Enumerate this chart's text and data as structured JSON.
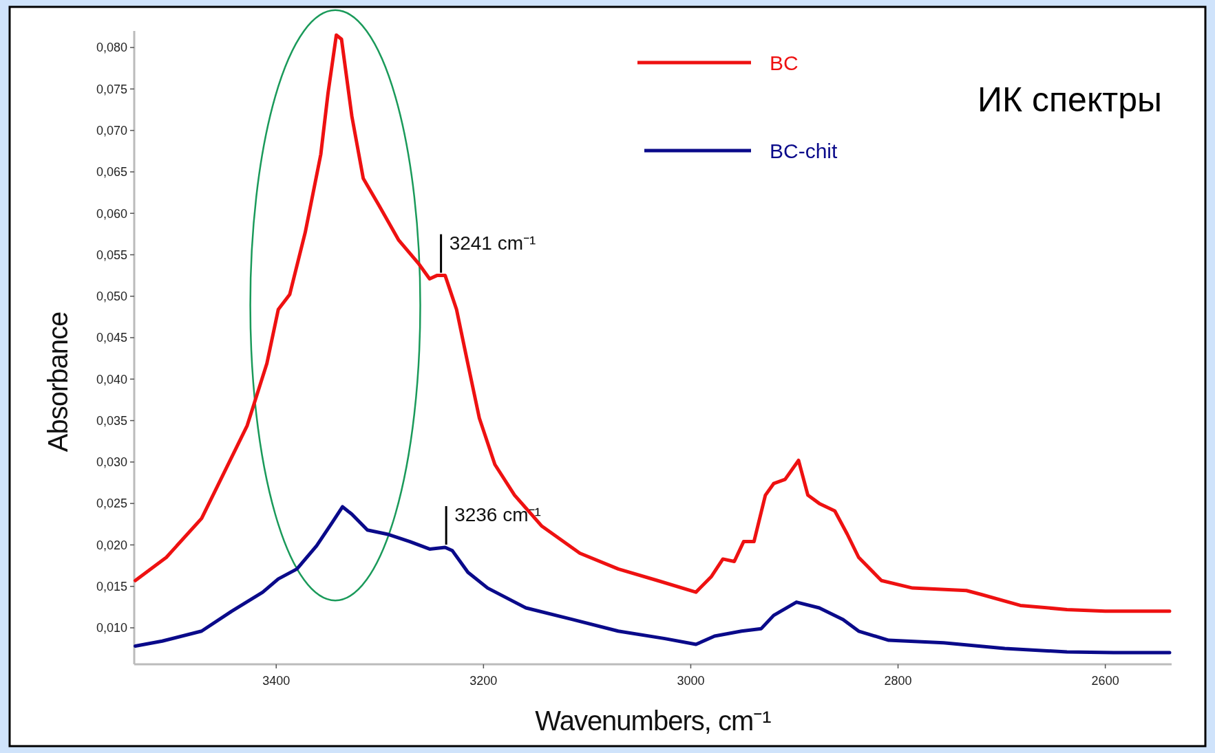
{
  "chart_data": {
    "type": "line",
    "title": "ИК спектры",
    "xlabel": "Wavenumbers, cm⁻¹",
    "ylabel": "Absorbance",
    "xlim": [
      3537,
      2536
    ],
    "ylim": [
      0.0056,
      0.082
    ],
    "xticks": [
      3400,
      3200,
      3000,
      2800,
      2600
    ],
    "yticks": [
      {
        "value": 0.01,
        "label": "0,010"
      },
      {
        "value": 0.015,
        "label": "0,015"
      },
      {
        "value": 0.02,
        "label": "0,020"
      },
      {
        "value": 0.025,
        "label": "0,025"
      },
      {
        "value": 0.03,
        "label": "0,030"
      },
      {
        "value": 0.035,
        "label": "0,035"
      },
      {
        "value": 0.04,
        "label": "0,040"
      },
      {
        "value": 0.045,
        "label": "0,045"
      },
      {
        "value": 0.05,
        "label": "0,050"
      },
      {
        "value": 0.055,
        "label": "0,055"
      },
      {
        "value": 0.06,
        "label": "0,060"
      },
      {
        "value": 0.065,
        "label": "0,065"
      },
      {
        "value": 0.07,
        "label": "0,070"
      },
      {
        "value": 0.075,
        "label": "0,075"
      },
      {
        "value": 0.08,
        "label": "0,080"
      }
    ],
    "grid": false,
    "legend": "top",
    "marker": "none",
    "line_style": "solid",
    "annotations": [
      {
        "text": "3241 cm⁻¹",
        "x": 3241,
        "y": 0.0525
      },
      {
        "text": "3236 cm⁻¹",
        "x": 3236,
        "y": 0.0197
      }
    ],
    "series": [
      {
        "name": "BC",
        "color": "#ee1111",
        "x": [
          3536,
          3506,
          3472,
          3450,
          3428,
          3409,
          3398,
          3387,
          3372,
          3357,
          3350,
          3342,
          3337,
          3327,
          3316,
          3301,
          3282,
          3263,
          3252,
          3245,
          3237,
          3226,
          3215,
          3204,
          3189,
          3170,
          3144,
          3107,
          3070,
          3032,
          2995,
          2980,
          2969,
          2958,
          2949,
          2939,
          2928,
          2920,
          2909,
          2896,
          2887,
          2876,
          2861,
          2849,
          2838,
          2816,
          2786,
          2734,
          2719,
          2682,
          2637,
          2600,
          2538
        ],
        "values": [
          0.0157,
          0.0185,
          0.0232,
          0.0288,
          0.0344,
          0.0419,
          0.0484,
          0.0502,
          0.0577,
          0.0671,
          0.0745,
          0.0815,
          0.081,
          0.0717,
          0.0642,
          0.061,
          0.0568,
          0.054,
          0.0521,
          0.0525,
          0.0525,
          0.0484,
          0.0418,
          0.0353,
          0.0297,
          0.026,
          0.0223,
          0.019,
          0.0171,
          0.0157,
          0.0143,
          0.0162,
          0.0183,
          0.018,
          0.0204,
          0.0204,
          0.026,
          0.0274,
          0.0279,
          0.0302,
          0.026,
          0.025,
          0.0241,
          0.0213,
          0.0185,
          0.0157,
          0.0148,
          0.0145,
          0.014,
          0.0127,
          0.0122,
          0.012,
          0.012
        ]
      },
      {
        "name": "BC-chit",
        "color": "#0a0a8a",
        "x": [
          3536,
          3510,
          3472,
          3443,
          3413,
          3398,
          3380,
          3361,
          3346,
          3336,
          3327,
          3312,
          3293,
          3271,
          3252,
          3237,
          3230,
          3215,
          3196,
          3159,
          3114,
          3070,
          3025,
          2995,
          2977,
          2951,
          2932,
          2920,
          2898,
          2876,
          2853,
          2838,
          2809,
          2756,
          2697,
          2637,
          2592,
          2538
        ],
        "values": [
          0.0078,
          0.0084,
          0.0096,
          0.012,
          0.0143,
          0.0159,
          0.0171,
          0.0199,
          0.0227,
          0.0246,
          0.0237,
          0.0218,
          0.0213,
          0.0204,
          0.0195,
          0.0197,
          0.0193,
          0.0167,
          0.0148,
          0.0124,
          0.011,
          0.0096,
          0.0087,
          0.008,
          0.009,
          0.0096,
          0.0099,
          0.0115,
          0.0131,
          0.0124,
          0.011,
          0.0096,
          0.0085,
          0.0082,
          0.0075,
          0.0071,
          0.007,
          0.007
        ]
      }
    ]
  }
}
